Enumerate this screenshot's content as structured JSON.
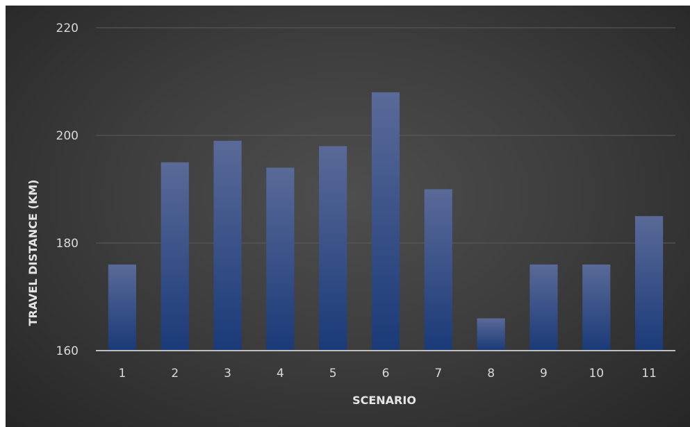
{
  "chart_data": {
    "type": "bar",
    "categories": [
      "1",
      "2",
      "3",
      "4",
      "5",
      "6",
      "7",
      "8",
      "9",
      "10",
      "11"
    ],
    "values": [
      176,
      195,
      199,
      194,
      198,
      208,
      190,
      166,
      176,
      176,
      185
    ],
    "title": "",
    "xlabel": "SCENARIO",
    "ylabel": "TRAVEL DISTANCE (KM)",
    "ylim": [
      160,
      220
    ],
    "yticks": [
      160,
      180,
      200,
      220
    ],
    "grid": true,
    "legend": "none",
    "colors": {
      "bar_top": "#5a6a98",
      "bar_bottom": "#1a3a78",
      "gridline": "#5c5c5c",
      "baseline": "#bfbfbf",
      "text": "#d9d9d9"
    }
  }
}
